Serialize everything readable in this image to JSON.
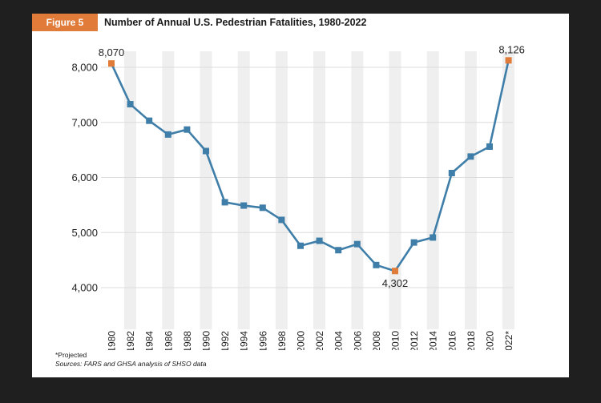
{
  "figure": {
    "tag": "Figure 5",
    "title": "Number of Annual U.S. Pedestrian Fatalities, 1980-2022"
  },
  "notes": {
    "projected": "*Projected",
    "sources": "Sources: FARS and GHSA analysis of SHSO data"
  },
  "colors": {
    "accent": "#e07b39",
    "line": "#3e7ea8",
    "band": "#efefef",
    "grid": "#dcdcdc"
  },
  "chart_data": {
    "type": "line",
    "title": "Number of Annual U.S. Pedestrian Fatalities, 1980-2022",
    "ylim": [
      4000,
      8200
    ],
    "yticks": [
      "4,000",
      "5,000",
      "6,000",
      "7,000",
      "8,000"
    ],
    "ytick_values": [
      4000,
      5000,
      6000,
      7000,
      8000
    ],
    "tick_years": [
      "1980",
      "1982",
      "1984",
      "1986",
      "1988",
      "1990",
      "1992",
      "1994",
      "1996",
      "1998",
      "2000",
      "2002",
      "2004",
      "2006",
      "2008",
      "2010",
      "2012",
      "2014",
      "2016",
      "2018",
      "2020",
      "2022*"
    ],
    "grid": "horizontal",
    "x": [
      1980,
      1982,
      1984,
      1986,
      1988,
      1990,
      1992,
      1994,
      1996,
      1998,
      2000,
      2002,
      2004,
      2006,
      2008,
      2010,
      2012,
      2014,
      2016,
      2018,
      2020,
      2022
    ],
    "y": [
      8070,
      7330,
      7030,
      6780,
      6870,
      6480,
      5550,
      5490,
      5450,
      5230,
      4760,
      4850,
      4680,
      4790,
      4410,
      4302,
      4820,
      4910,
      6080,
      6380,
      6560,
      8126
    ],
    "highlighted": [
      {
        "x": 1980,
        "y": 8070,
        "label": "8,070"
      },
      {
        "x": 2010,
        "y": 4302,
        "label": "4,302"
      },
      {
        "x": 2022,
        "y": 8126,
        "label": "8,126"
      }
    ]
  }
}
